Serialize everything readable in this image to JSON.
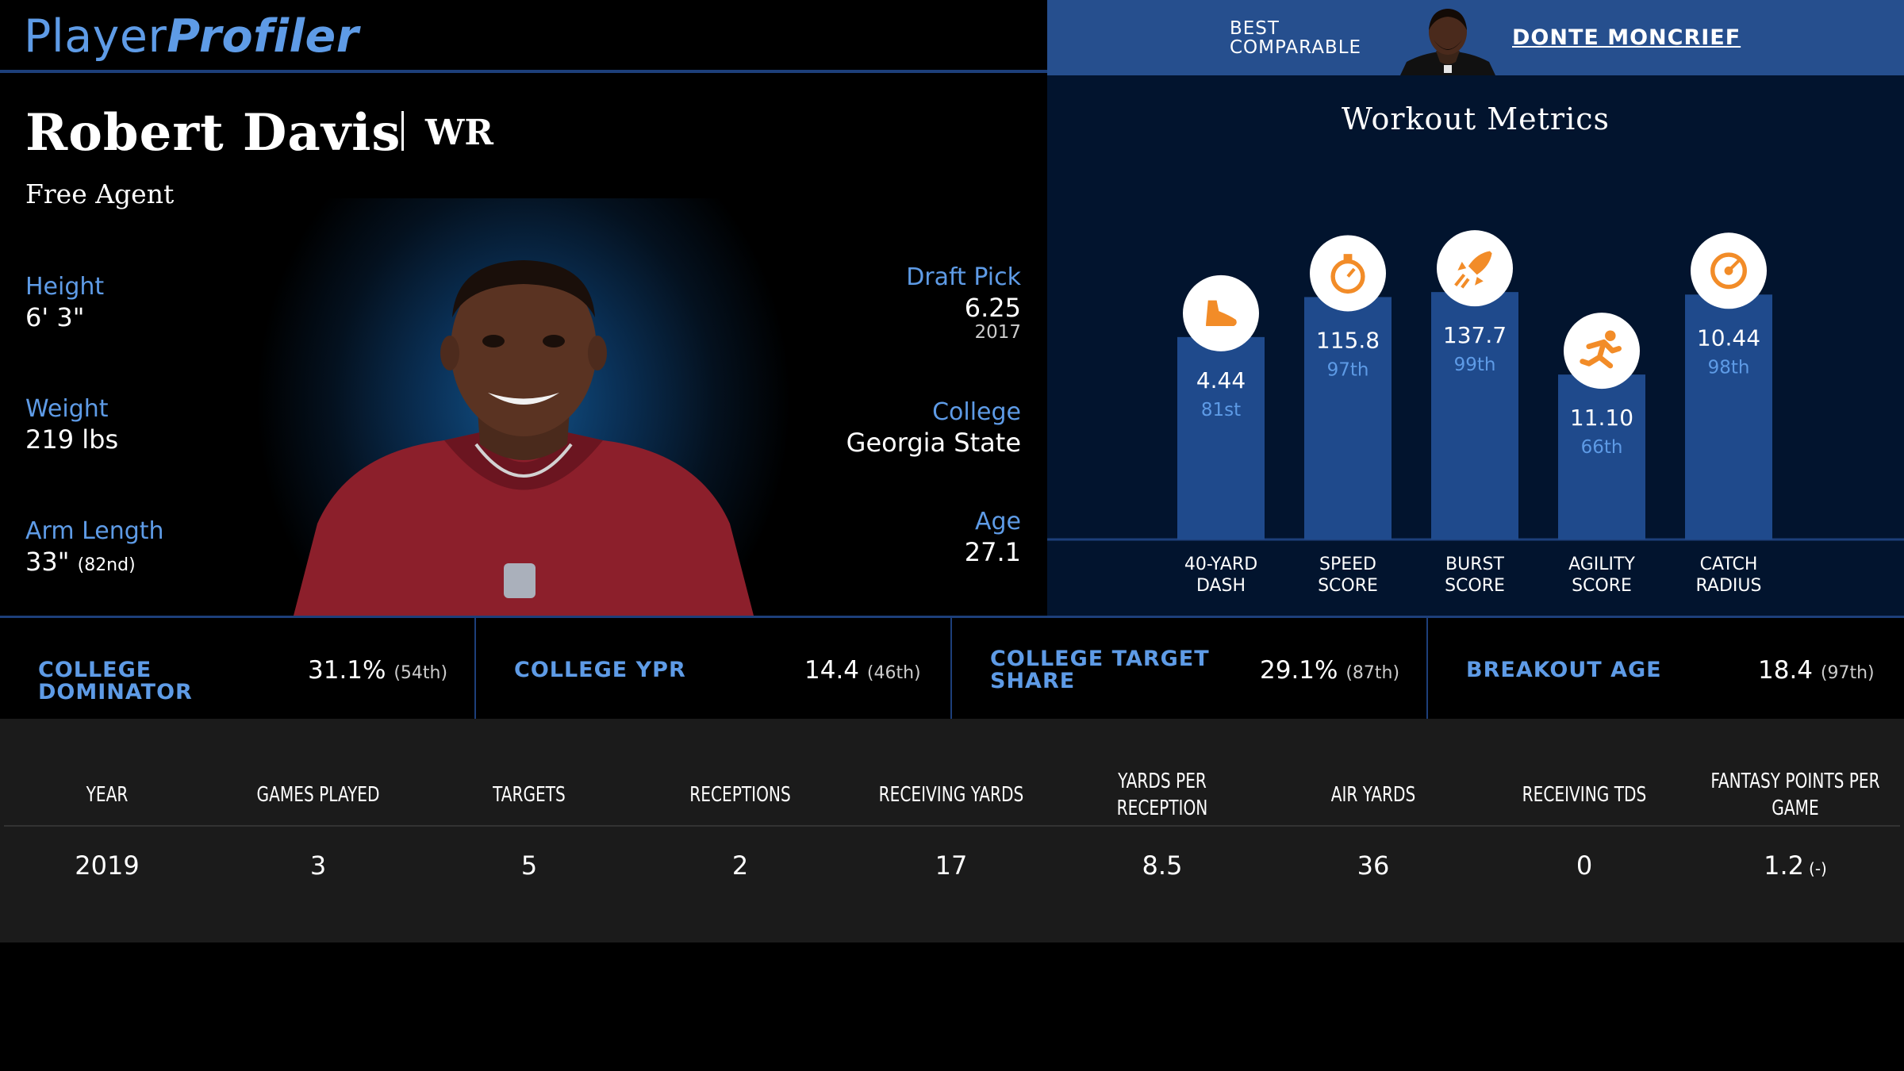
{
  "header": {
    "logo_part1": "Player",
    "logo_part2": "Profiler",
    "best_comparable_label": "BEST COMPARABLE",
    "best_comparable_name": "DONTE MONCRIEF"
  },
  "player": {
    "name": "Robert Davis",
    "position": "WR",
    "team": "Free Agent",
    "height_label": "Height",
    "height": "6' 3\"",
    "weight_label": "Weight",
    "weight": "219 lbs",
    "arm_label": "Arm Length",
    "arm": "33\"",
    "arm_pct": "(82nd)",
    "draft_label": "Draft Pick",
    "draft_pick": "6.25",
    "draft_year": "2017",
    "college_label": "College",
    "college": "Georgia State",
    "age_label": "Age",
    "age": "27.1"
  },
  "workout": {
    "title": "Workout Metrics",
    "metrics": [
      {
        "label_line1": "40-YARD",
        "label_line2": "DASH",
        "value": "4.44",
        "percentile": "81st",
        "pct_num": 81,
        "icon": "shoe-icon"
      },
      {
        "label_line1": "SPEED",
        "label_line2": "SCORE",
        "value": "115.8",
        "percentile": "97th",
        "pct_num": 97,
        "icon": "stopwatch-icon"
      },
      {
        "label_line1": "BURST",
        "label_line2": "SCORE",
        "value": "137.7",
        "percentile": "99th",
        "pct_num": 99,
        "icon": "rocket-icon"
      },
      {
        "label_line1": "AGILITY",
        "label_line2": "SCORE",
        "value": "11.10",
        "percentile": "66th",
        "pct_num": 66,
        "icon": "runner-icon"
      },
      {
        "label_line1": "CATCH",
        "label_line2": "RADIUS",
        "value": "10.44",
        "percentile": "98th",
        "pct_num": 98,
        "icon": "target-icon"
      }
    ],
    "colors": {
      "bar": "#1f4a8c",
      "accent": "#f28c28",
      "percentile": "#5e9be6"
    }
  },
  "college": [
    {
      "label": "COLLEGE DOMINATOR",
      "value": "31.1%",
      "pct": "(54th)"
    },
    {
      "label": "COLLEGE YPR",
      "value": "14.4",
      "pct": "(46th)"
    },
    {
      "label": "COLLEGE TARGET SHARE",
      "value": "29.1%",
      "pct": "(87th)"
    },
    {
      "label": "BREAKOUT AGE",
      "value": "18.4",
      "pct": "(97th)"
    }
  ],
  "stats": {
    "headers": [
      "YEAR",
      "GAMES PLAYED",
      "TARGETS",
      "RECEPTIONS",
      "RECEIVING YARDS",
      "YARDS PER RECEPTION",
      "AIR YARDS",
      "RECEIVING TDS",
      "FANTASY POINTS PER GAME"
    ],
    "rows": [
      [
        "2019",
        "3",
        "5",
        "2",
        "17",
        "8.5",
        "36",
        "0",
        "1.2"
      ]
    ],
    "fantasy_pct": "(-)"
  }
}
